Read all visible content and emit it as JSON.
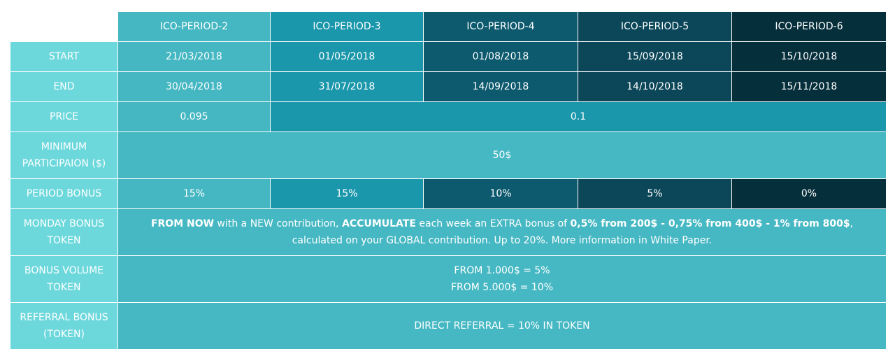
{
  "periods": [
    "ICO-PERIOD-2",
    "ICO-PERIOD-3",
    "ICO-PERIOD-4",
    "ICO-PERIOD-5",
    "ICO-PERIOD-6"
  ],
  "rows": {
    "start": {
      "label": "START",
      "values": [
        "21/03/2018",
        "01/05/2018",
        "01/08/2018",
        "15/09/2018",
        "15/10/2018"
      ]
    },
    "end": {
      "label": "END",
      "values": [
        "30/04/2018",
        "31/07/2018",
        "14/09/2018",
        "14/10/2018",
        "15/11/2018"
      ]
    },
    "price": {
      "label": "PRICE",
      "first": "0.095",
      "rest": "0.1"
    },
    "minimum": {
      "label_line1": "MINIMUM",
      "label_line2": "PARTICIPAION ($)",
      "value": "50$"
    },
    "period_bonus": {
      "label": "PERIOD BONUS",
      "values": [
        "15%",
        "15%",
        "10%",
        "5%",
        "0%"
      ]
    },
    "monday_bonus": {
      "label_line1": "MONDAY BONUS",
      "label_line2": "TOKEN",
      "text": {
        "p1": "FROM NOW",
        "p2": " with a NEW contribution, ",
        "p3": "ACCUMULATE",
        "p4": " each week an EXTRA bonus of ",
        "p5": "0,5% from 200$ - 0,75% from 400$ - 1% from 800$",
        "p6": ", calculated on your GLOBAL contribution. Up to 20%. More information in White Paper."
      }
    },
    "bonus_volume": {
      "label_line1": "BONUS VOLUME",
      "label_line2": "TOKEN",
      "line1": "FROM 1.000$ = 5%",
      "line2": "FROM 5.000$ = 10%"
    },
    "referral": {
      "label_line1": "REFERRAL BONUS",
      "label_line2": "(TOKEN)",
      "value": "DIRECT REFERRAL = 10% IN TOKEN"
    }
  }
}
